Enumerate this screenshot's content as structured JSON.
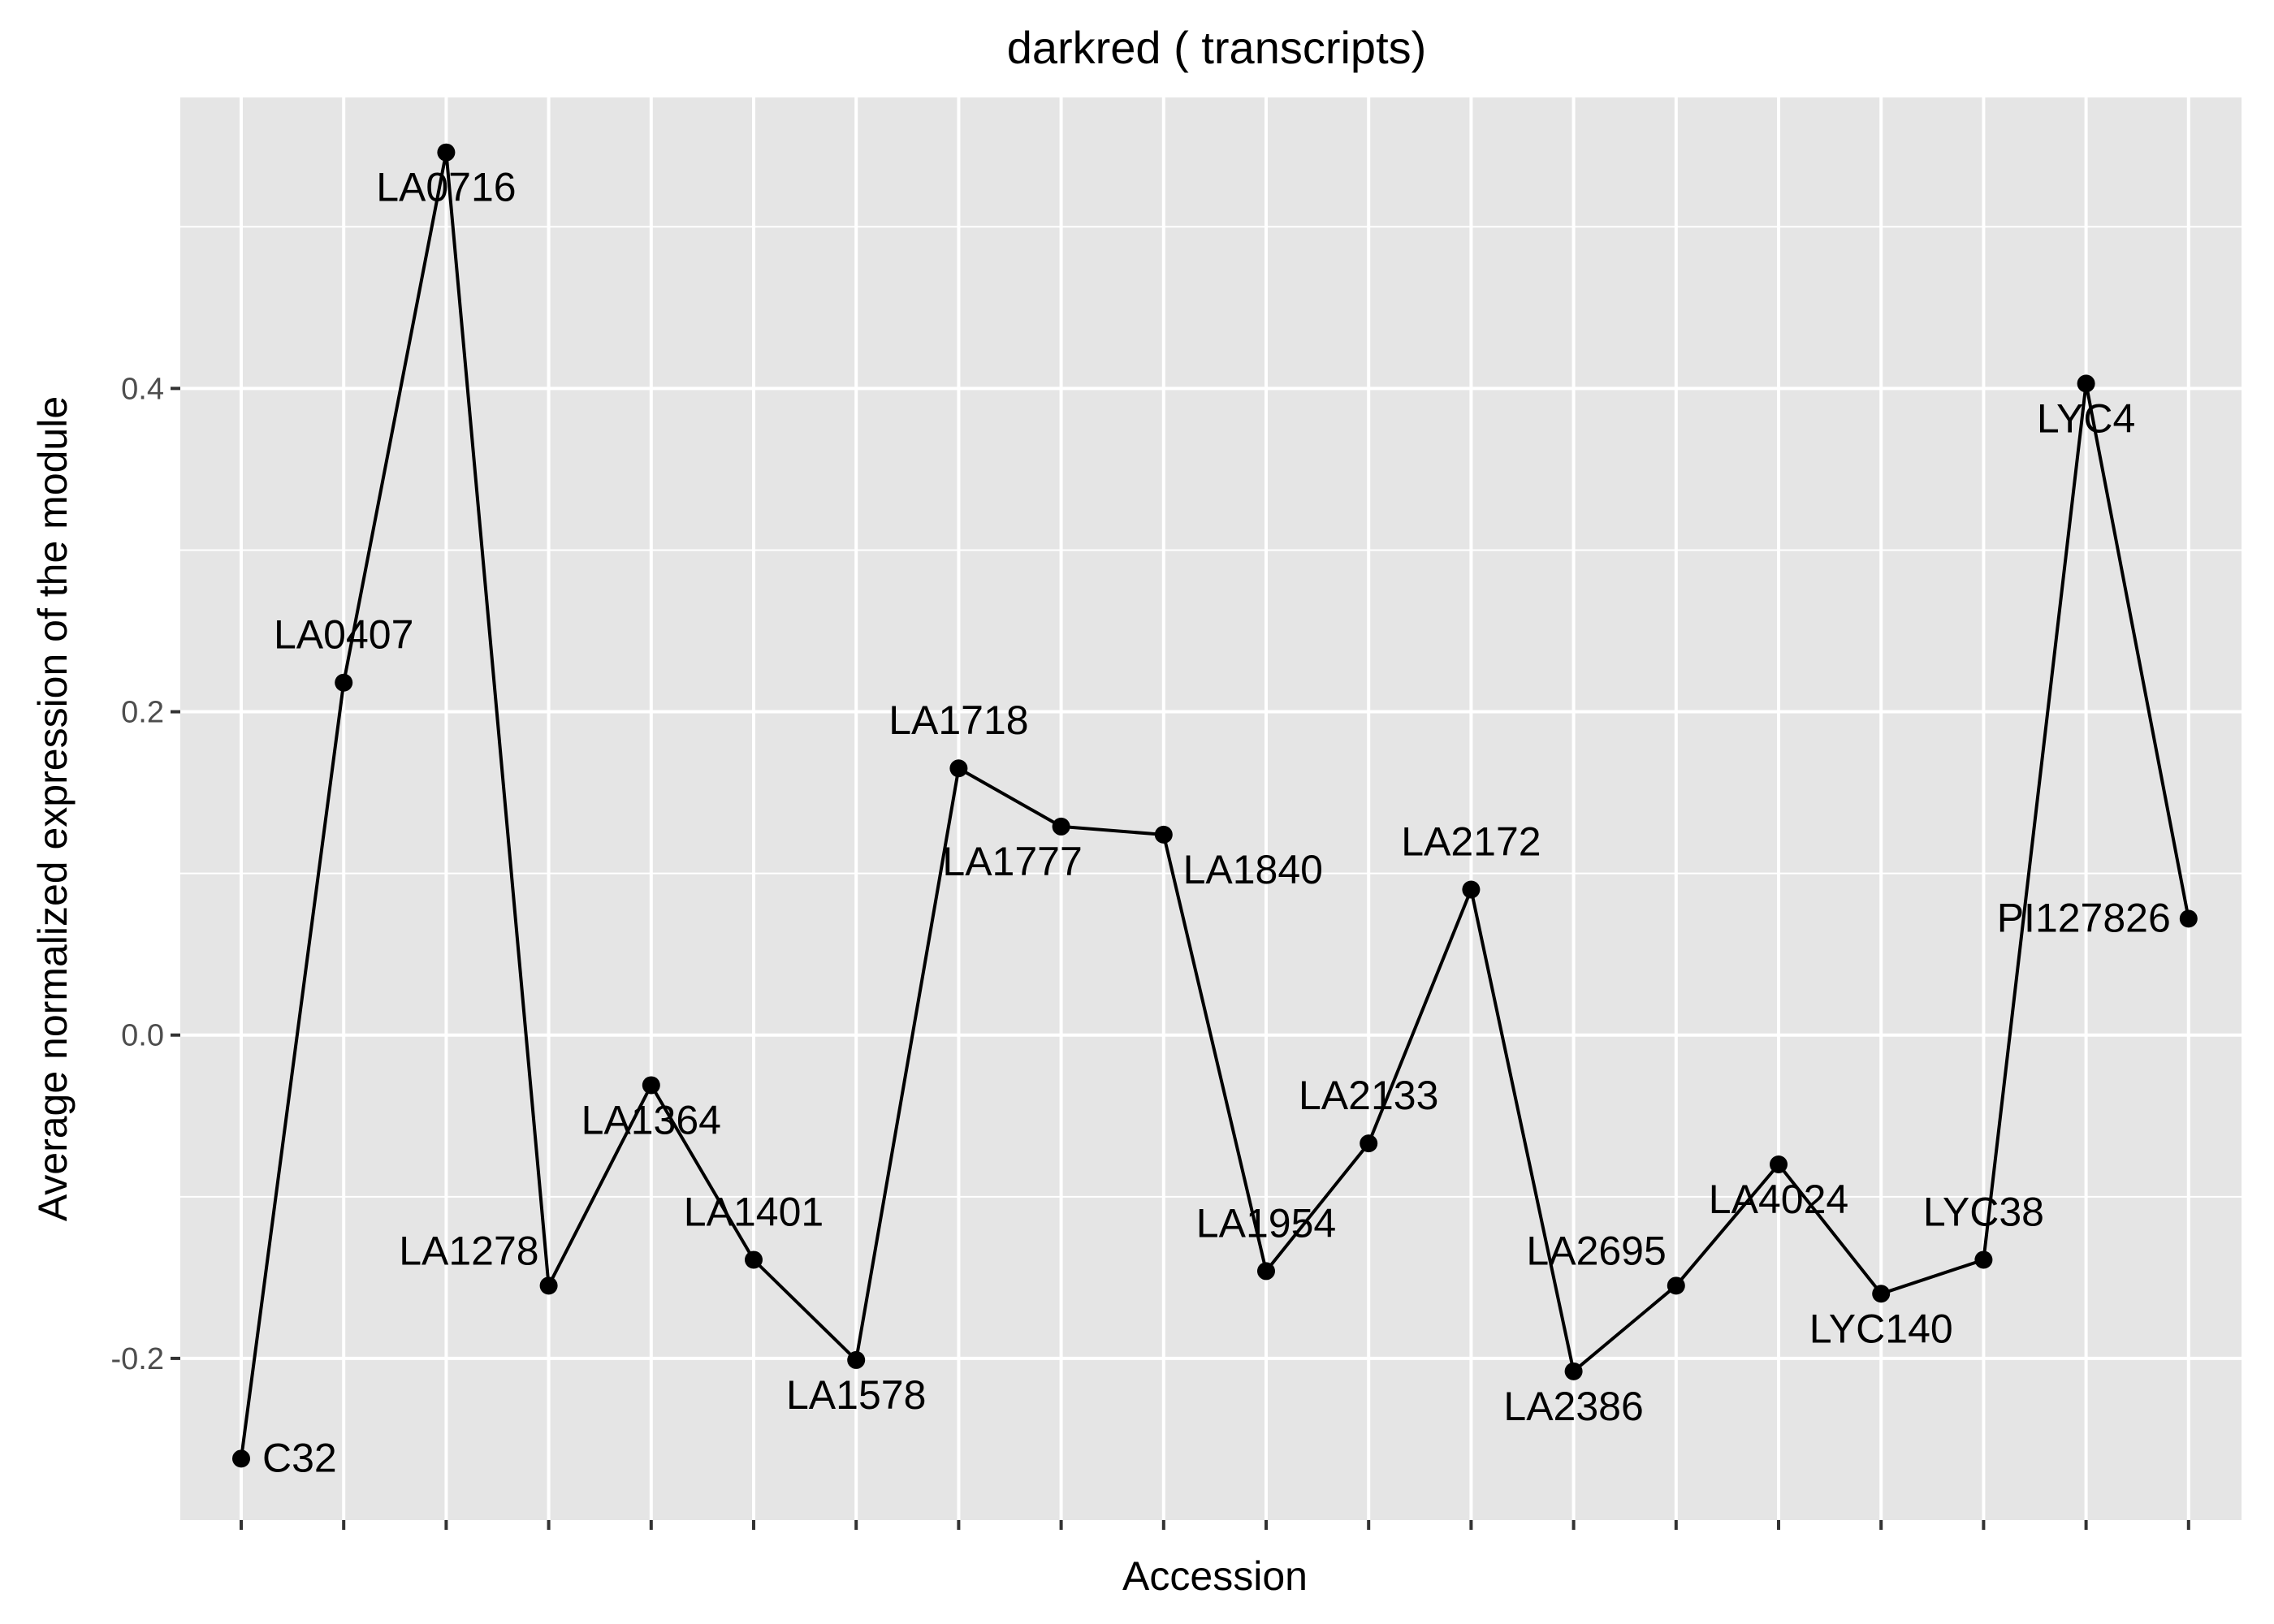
{
  "chart_data": {
    "type": "line",
    "title": "darkred ( transcripts)",
    "xlabel": "Accession",
    "ylabel": "Average normalized expression of the module",
    "ylim": [
      -0.3,
      0.58
    ],
    "yticks": [
      -0.2,
      0.0,
      0.2,
      0.4
    ],
    "ytick_labels": [
      "-0.2",
      "0.0",
      "0.2",
      "0.4"
    ],
    "grid": true,
    "x_tick_labels_visible": false,
    "colors": {
      "panel": "#e5e5e5",
      "grid": "#ffffff",
      "line": "#000000",
      "point": "#000000",
      "tick": "#333333"
    },
    "points": [
      {
        "label": "C32",
        "y": -0.262,
        "label_pos": "right"
      },
      {
        "label": "LA0407",
        "y": 0.218,
        "label_pos": "above"
      },
      {
        "label": "LA0716",
        "y": 0.546,
        "label_pos": "below"
      },
      {
        "label": "LA1278",
        "y": -0.155,
        "label_pos": "above-left"
      },
      {
        "label": "LA1364",
        "y": -0.031,
        "label_pos": "below"
      },
      {
        "label": "LA1401",
        "y": -0.139,
        "label_pos": "above"
      },
      {
        "label": "LA1578",
        "y": -0.201,
        "label_pos": "below"
      },
      {
        "label": "LA1718",
        "y": 0.165,
        "label_pos": "above"
      },
      {
        "label": "LA1777",
        "y": 0.129,
        "label_pos": "below-left"
      },
      {
        "label": "LA1840",
        "y": 0.124,
        "label_pos": "below-right"
      },
      {
        "label": "LA1954",
        "y": -0.146,
        "label_pos": "above"
      },
      {
        "label": "LA2133",
        "y": -0.067,
        "label_pos": "above"
      },
      {
        "label": "LA2172",
        "y": 0.09,
        "label_pos": "above"
      },
      {
        "label": "LA2386",
        "y": -0.208,
        "label_pos": "below"
      },
      {
        "label": "LA2695",
        "y": -0.155,
        "label_pos": "above-left"
      },
      {
        "label": "LA4024",
        "y": -0.08,
        "label_pos": "below"
      },
      {
        "label": "LYC140",
        "y": -0.16,
        "label_pos": "below"
      },
      {
        "label": "LYC38",
        "y": -0.139,
        "label_pos": "above"
      },
      {
        "label": "LYC4",
        "y": 0.403,
        "label_pos": "below"
      },
      {
        "label": "PI127826",
        "y": 0.072,
        "label_pos": "left"
      }
    ]
  }
}
